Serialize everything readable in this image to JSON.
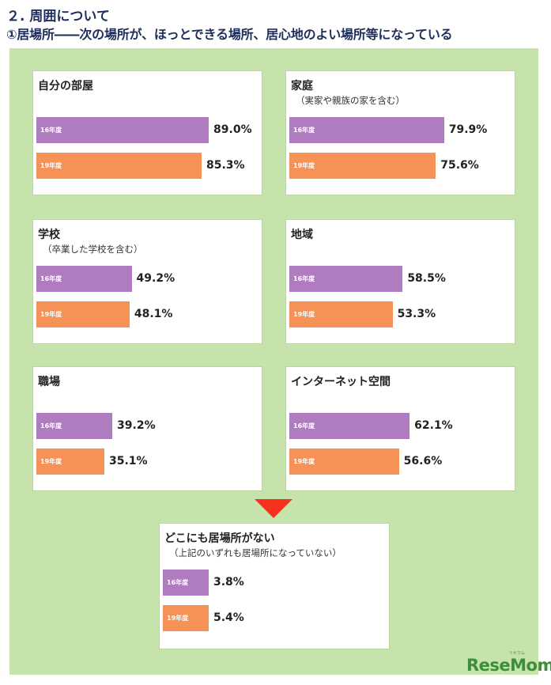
{
  "header": {
    "section_title": "２. 周囲について",
    "question": "①居場所――次の場所が、ほっとできる場所、居心地のよい場所等になっている"
  },
  "chart_data": {
    "type": "bar",
    "unit": "%",
    "series_names": [
      "16年度",
      "19年度"
    ],
    "colors": {
      "16年度": "#b07cc0",
      "19年度": "#f79256",
      "background": "#c6e3ac"
    },
    "panels": [
      {
        "title": "自分の部屋",
        "subtitle": "",
        "values": [
          89.0,
          85.3
        ]
      },
      {
        "title": "家庭",
        "subtitle": "（実家や親族の家を含む）",
        "values": [
          79.9,
          75.6
        ]
      },
      {
        "title": "学校",
        "subtitle": "（卒業した学校を含む）",
        "values": [
          49.2,
          48.1
        ]
      },
      {
        "title": "地域",
        "subtitle": "",
        "values": [
          58.5,
          53.3
        ]
      },
      {
        "title": "職場",
        "subtitle": "",
        "values": [
          39.2,
          35.1
        ]
      },
      {
        "title": "インターネット空間",
        "subtitle": "",
        "values": [
          62.1,
          56.6
        ]
      },
      {
        "title": "どこにも居場所がない",
        "subtitle": "（上記のいずれも居場所になっていない）",
        "values": [
          3.8,
          5.4
        ]
      }
    ]
  },
  "logo": {
    "text": "ReseMom",
    "small": "リセマム"
  }
}
